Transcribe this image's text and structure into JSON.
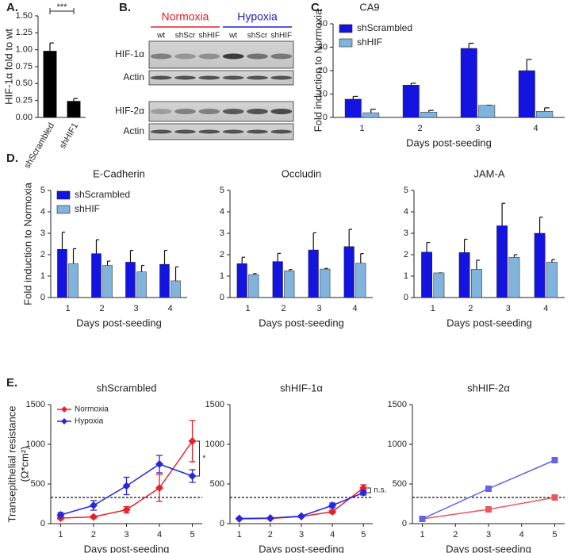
{
  "chart_data": [
    {
      "type": "bar",
      "panel": "A.",
      "y_label": "HIF-1α fold to wt",
      "categories": [
        "shScrambled",
        "shHIF1"
      ],
      "values": [
        0.98,
        0.24
      ],
      "errors": [
        0.12,
        0.04
      ],
      "color": "#000000",
      "ylim": [
        0,
        1.5
      ],
      "yticks": [
        {
          "value": 0,
          "label": "0.00"
        },
        {
          "value": 0.25,
          "label": "0.25"
        },
        {
          "value": 0.5,
          "label": "0.50"
        },
        {
          "value": 0.75,
          "label": "0.75"
        },
        {
          "value": 1,
          "label": "1.00"
        },
        {
          "value": 1.25,
          "label": "1.25"
        },
        {
          "value": 1.5,
          "label": "1.50"
        }
      ],
      "significance": "***"
    },
    {
      "type": "bar",
      "panel": "C.",
      "title": "CA9",
      "y_label": "Fold induction to Normoxia",
      "x_label": "Days post-seeding",
      "categories": [
        "1",
        "2",
        "3",
        "4"
      ],
      "series": [
        {
          "name": "shScrambled",
          "color": "#1414e0",
          "values": [
            7.8,
            13.8,
            29.5,
            20
          ],
          "errors": [
            1.2,
            0.8,
            2.2,
            4.8
          ]
        },
        {
          "name": "shHIF",
          "color": "#80b4dc",
          "values": [
            2,
            2.3,
            5.2,
            2.6
          ],
          "errors": [
            1.5,
            0.7,
            0,
            1.5
          ]
        }
      ],
      "ylim": [
        0,
        40
      ],
      "yticks": [
        0,
        10,
        20,
        30,
        40
      ],
      "legend": "top-left"
    },
    {
      "type": "bar",
      "panel": "D.",
      "title": "E-Cadherin",
      "y_label": "Fold induction to Normoxia",
      "x_label": "Days post-seeding",
      "categories": [
        "1",
        "2",
        "3",
        "4"
      ],
      "series": [
        {
          "name": "shScrambled",
          "color": "#1414e0",
          "values": [
            2.25,
            2.05,
            1.65,
            1.55
          ],
          "errors": [
            0.8,
            0.65,
            0.55,
            0.65
          ]
        },
        {
          "name": "shHIF",
          "color": "#80b4dc",
          "values": [
            1.58,
            1.5,
            1.2,
            0.78
          ],
          "errors": [
            0.7,
            0.2,
            0.3,
            0.65
          ]
        }
      ],
      "ylim": [
        0,
        5
      ],
      "yticks": [
        0,
        1,
        2,
        3,
        4,
        5
      ],
      "legend": "top-left"
    },
    {
      "type": "bar",
      "title": "Occludin",
      "x_label": "Days post-seeding",
      "categories": [
        "1",
        "2",
        "3",
        "4"
      ],
      "series": [
        {
          "color": "#1414e0",
          "values": [
            1.58,
            1.68,
            2.22,
            2.38
          ],
          "errors": [
            0.3,
            0.38,
            0.8,
            0.8
          ]
        },
        {
          "color": "#80b4dc",
          "values": [
            1.07,
            1.25,
            1.33,
            1.6
          ],
          "errors": [
            0.05,
            0.06,
            0.03,
            0.45
          ]
        }
      ],
      "ylim": [
        0,
        5
      ],
      "yticks": [
        0,
        1,
        2,
        3,
        4,
        5
      ]
    },
    {
      "type": "bar",
      "title": "JAM-A",
      "x_label": "Days post-seeding",
      "categories": [
        "1",
        "2",
        "3",
        "4"
      ],
      "series": [
        {
          "color": "#1414e0",
          "values": [
            2.12,
            2.1,
            3.35,
            3.0
          ],
          "errors": [
            0.45,
            0.62,
            1.05,
            0.75
          ]
        },
        {
          "color": "#80b4dc",
          "values": [
            1.15,
            1.32,
            1.88,
            1.65
          ],
          "errors": [
            0,
            0.42,
            0.12,
            0.12
          ]
        }
      ],
      "ylim": [
        0,
        5
      ],
      "yticks": [
        0,
        1,
        2,
        3,
        4,
        5
      ]
    },
    {
      "type": "line",
      "panel": "E.",
      "title": "shScrambled",
      "y_label": [
        "Transepithelial resistance",
        "(Ω*cm²)"
      ],
      "x_label": "Days post-seeding",
      "x": [
        1,
        2,
        3,
        4,
        5
      ],
      "series": [
        {
          "name": "Normoxia",
          "color": "#e8202a",
          "marker": "diamond",
          "values": [
            70,
            85,
            175,
            450,
            1040
          ],
          "errors": [
            20,
            15,
            40,
            170,
            260
          ]
        },
        {
          "name": "Hypoxia",
          "color": "#2828d8",
          "marker": "diamond",
          "values": [
            110,
            230,
            475,
            750,
            600
          ],
          "errors": [
            30,
            60,
            110,
            110,
            80
          ]
        }
      ],
      "xlim": [
        0.7,
        5.3
      ],
      "xticks": [
        1,
        2,
        3,
        4,
        5
      ],
      "ylim": [
        0,
        1500
      ],
      "yticks": [
        0,
        500,
        1000,
        1500
      ],
      "reference_line": 330,
      "legend": "top-left",
      "significance": "*"
    },
    {
      "type": "line",
      "title": "shHIF-1α",
      "x_label": "Days post-seeding",
      "x": [
        1,
        2,
        3,
        4,
        5
      ],
      "series": [
        {
          "color": "#e8202a",
          "marker": "diamond",
          "values": [
            60,
            65,
            90,
            150,
            450
          ],
          "errors": [
            5,
            5,
            10,
            20,
            40
          ]
        },
        {
          "color": "#2828d8",
          "marker": "diamond",
          "values": [
            65,
            70,
            95,
            230,
            390
          ],
          "errors": [
            5,
            5,
            10,
            30,
            30
          ]
        }
      ],
      "xlim": [
        0.7,
        5.3
      ],
      "xticks": [
        1,
        2,
        3,
        4,
        5
      ],
      "ylim": [
        0,
        1500
      ],
      "yticks": [
        0,
        500,
        1000,
        1500
      ],
      "reference_line": 330,
      "significance": "n.s."
    },
    {
      "type": "line",
      "title": "shHIF-2α",
      "x_label": "Days post-seeding",
      "x": [
        1,
        3,
        5
      ],
      "series": [
        {
          "color": "#e85860",
          "marker": "square",
          "values": [
            60,
            180,
            330
          ]
        },
        {
          "color": "#6464e0",
          "marker": "square",
          "values": [
            60,
            440,
            800
          ]
        }
      ],
      "xlim": [
        0.7,
        5.3
      ],
      "xticks": [
        1,
        2,
        3,
        4,
        5
      ],
      "ylim": [
        0,
        1500
      ],
      "yticks": [
        0,
        500,
        1000,
        1500
      ],
      "reference_line": 330
    }
  ],
  "blot": {
    "panel": "B.",
    "conditions": [
      {
        "name": "Normoxia",
        "color": "#e0202a"
      },
      {
        "name": "Hypoxia",
        "color": "#2020c0"
      }
    ],
    "lanes": [
      "wt",
      "shScr",
      "shHIF",
      "wt",
      "shScr",
      "shHIF"
    ],
    "rows": [
      "HIF-1α",
      "Actin",
      "HIF-2α",
      "Actin"
    ]
  }
}
